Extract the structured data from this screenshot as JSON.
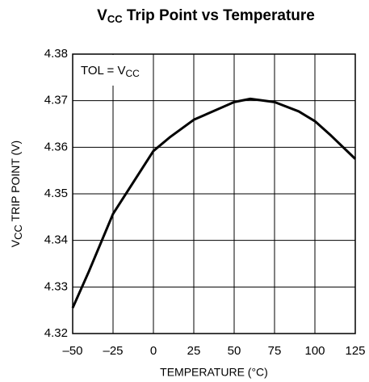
{
  "chart_data": {
    "type": "line",
    "title": [
      "V",
      "CC",
      " Trip Point vs Temperature"
    ],
    "x_label": "TEMPERATURE (°C)",
    "y_label": [
      "V",
      "CC",
      " TRIP POINT (V)"
    ],
    "annotation": [
      "TOL = V",
      "CC"
    ],
    "x": [
      -50,
      -40,
      -25,
      -10,
      0,
      10,
      25,
      50,
      60,
      75,
      90,
      100,
      110,
      125
    ],
    "series": [
      {
        "color": "#000000",
        "values": [
          4.3255,
          4.3333,
          4.3457,
          4.3538,
          4.3592,
          4.3621,
          4.3659,
          4.3697,
          4.3704,
          4.3697,
          4.3677,
          4.3656,
          4.3625,
          4.3575
        ]
      }
    ],
    "xlim": [
      -50,
      125
    ],
    "xticks": [
      {
        "value": -50,
        "label": "–50"
      },
      {
        "value": -25,
        "label": "–25"
      },
      0,
      25,
      50,
      75,
      100,
      125
    ],
    "ylim": [
      4.32,
      4.38
    ],
    "yticks": [
      4.32,
      4.33,
      4.34,
      4.35,
      4.36,
      4.37,
      4.38
    ],
    "grid": true
  }
}
